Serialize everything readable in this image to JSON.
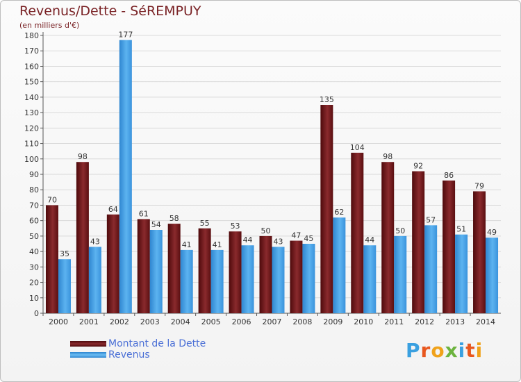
{
  "header": {
    "title": "Revenus/Dette - SéREMPUY",
    "subtitle": "(en milliers d'€)"
  },
  "legend": [
    {
      "label": "Montant de la Dette",
      "color": "#6b1214"
    },
    {
      "label": "Revenus",
      "color": "#4aa3e6"
    }
  ],
  "logo": {
    "text": "Proxiti"
  },
  "chart_data": {
    "type": "bar",
    "categories": [
      "2000",
      "2001",
      "2002",
      "2003",
      "2004",
      "2005",
      "2006",
      "2007",
      "2008",
      "2009",
      "2010",
      "2011",
      "2012",
      "2013",
      "2014"
    ],
    "series": [
      {
        "name": "Montant de la Dette",
        "color": "#7a1f22",
        "values": [
          70,
          98,
          64,
          61,
          58,
          55,
          53,
          50,
          47,
          135,
          104,
          98,
          92,
          86,
          79
        ]
      },
      {
        "name": "Revenus",
        "color": "#4aa3e6",
        "values": [
          35,
          43,
          177,
          54,
          41,
          41,
          44,
          43,
          45,
          62,
          44,
          50,
          57,
          51,
          49
        ]
      }
    ],
    "title": "Revenus/Dette - SéREMPUY",
    "ylabel": "(en milliers d'€)",
    "ylim": [
      0,
      180
    ],
    "ytick_step": 10,
    "grid": true,
    "legend_position": "bottom-left"
  }
}
